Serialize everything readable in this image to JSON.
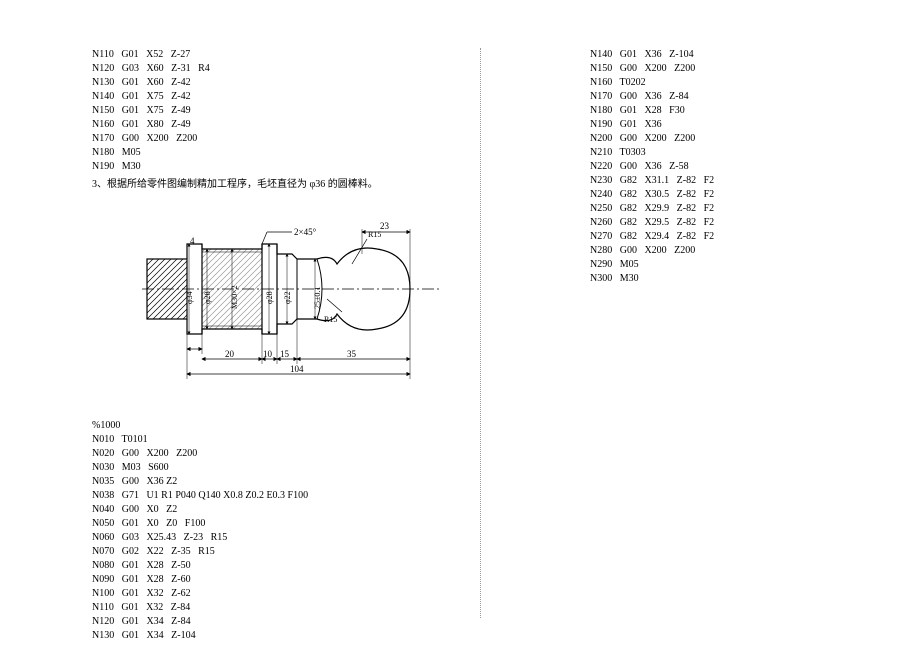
{
  "left_block1": [
    "N110   G01   X52   Z-27",
    "N120   G03   X60   Z-31   R4",
    "N130   G01   X60   Z-42",
    "N140   G01   X75   Z-42",
    "N150   G01   X75   Z-49",
    "N160   G01   X80   Z-49",
    "N170   G00   X200   Z200",
    "N180   M05",
    "N190   M30"
  ],
  "instruction": "3、根据所给零件图编制精加工程序，毛坯直径为 φ36 的圆棒料。",
  "diagram": {
    "dims_horizontal": [
      "4",
      "20",
      "10",
      "15",
      "35",
      "104",
      "23"
    ],
    "dims_vertical": [
      "φ34",
      "φ28",
      "M30×2",
      "φ28",
      "φ22",
      "25±0.1"
    ],
    "radii": [
      "R15",
      "R15"
    ],
    "chamfer": "2×45°",
    "stroke": "#000",
    "hatch": "diagonal"
  },
  "prog_header": "%1000",
  "left_block2": [
    "N010   T0101",
    "N020   G00   X200   Z200",
    "N030   M03   S600",
    "N035   G00   X36 Z2",
    "N038   G71   U1 R1 P040 Q140 X0.8 Z0.2 E0.3 F100",
    "N040   G00   X0   Z2",
    "N050   G01   X0   Z0   F100",
    "N060   G03   X25.43   Z-23   R15",
    "N070   G02   X22   Z-35   R15",
    "N080   G01   X28   Z-50",
    "N090   G01   X28   Z-60",
    "N100   G01   X32   Z-62",
    "N110   G01   X32   Z-84",
    "N120   G01   X34   Z-84",
    "N130   G01   X34   Z-104"
  ],
  "right_block": [
    "N140   G01   X36   Z-104",
    "N150   G00   X200   Z200",
    "N160   T0202",
    "N170   G00   X36   Z-84",
    "N180   G01   X28   F30",
    "N190   G01   X36",
    "N200   G00   X200   Z200",
    "N210   T0303",
    "N220   G00   X36   Z-58",
    "N230   G82   X31.1   Z-82   F2",
    "N240   G82   X30.5   Z-82   F2",
    "N250   G82   X29.9   Z-82   F2",
    "N260   G82   X29.5   Z-82   F2",
    "N270   G82   X29.4   Z-82   F2",
    "N280   G00   X200   Z200",
    "N290   M05",
    "N300   M30"
  ]
}
